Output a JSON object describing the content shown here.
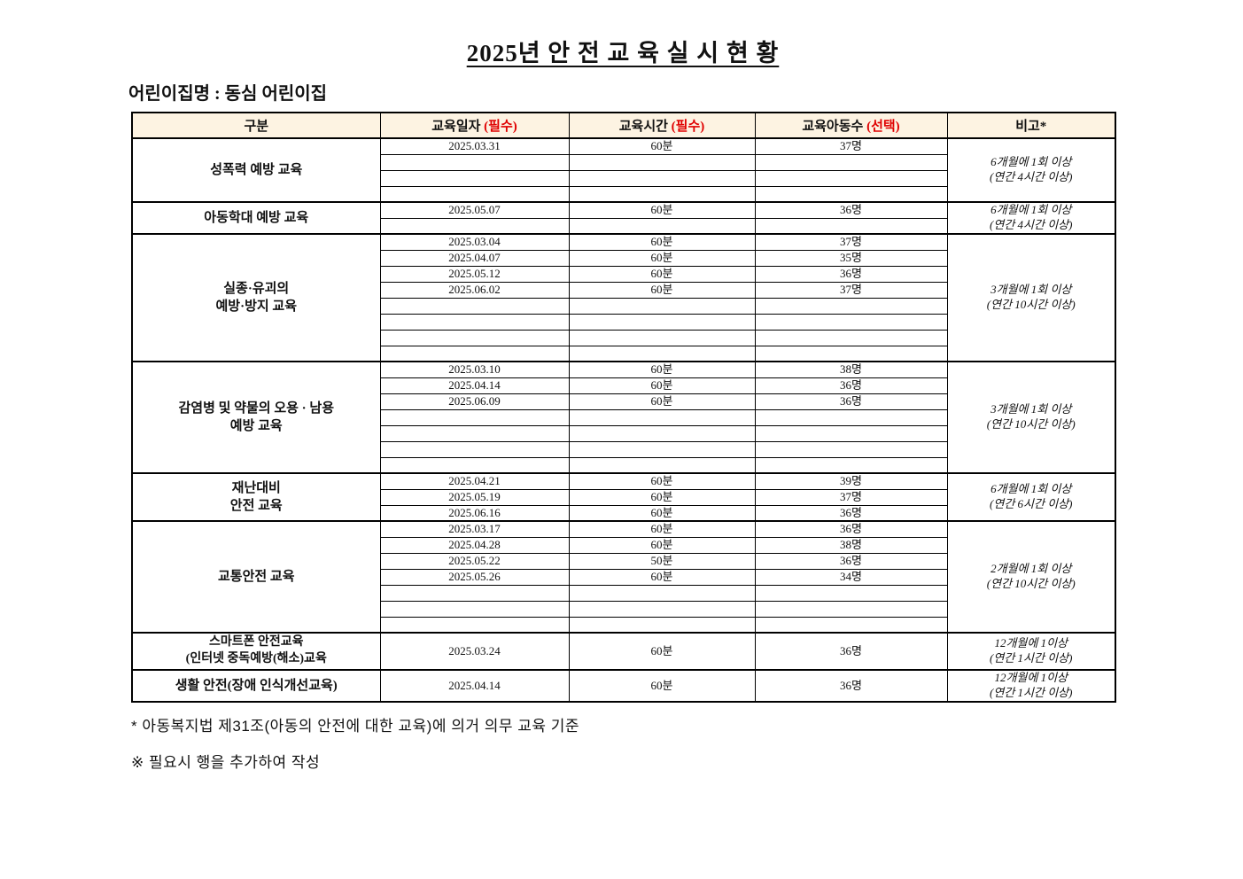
{
  "page": {
    "title": "2025년 안 전 교 육 실 시 현 황",
    "facility": "어린이집명 : 동심 어린이집"
  },
  "table": {
    "headers": {
      "category": "구분",
      "date": "교육일자",
      "date_req": "(필수)",
      "time": "교육시간",
      "time_req": "(필수)",
      "children": "교육아동수",
      "children_req": "(선택)",
      "remark": "비고*"
    },
    "blocks": [
      {
        "category_lines": [
          "성폭력 예방 교육"
        ],
        "rows": [
          {
            "date": "2025.03.31",
            "duration": "60분",
            "children": "37명"
          },
          {
            "date": "",
            "duration": "",
            "children": ""
          },
          {
            "date": "",
            "duration": "",
            "children": ""
          },
          {
            "date": "",
            "duration": "",
            "children": ""
          }
        ],
        "remark_lines": [
          "6개월에 1회 이상",
          "(연간 4시간 이상)"
        ]
      },
      {
        "category_lines": [
          "아동학대 예방 교육"
        ],
        "rows": [
          {
            "date": "2025.05.07",
            "duration": "60분",
            "children": "36명"
          },
          {
            "date": "",
            "duration": "",
            "children": ""
          }
        ],
        "remark_lines": [
          "6개월에 1회 이상",
          "(연간 4시간 이상)"
        ]
      },
      {
        "category_lines": [
          "실종·유괴의",
          "예방·방지 교육"
        ],
        "rows": [
          {
            "date": "2025.03.04",
            "duration": "60분",
            "children": "37명"
          },
          {
            "date": "2025.04.07",
            "duration": "60분",
            "children": "35명"
          },
          {
            "date": "2025.05.12",
            "duration": "60분",
            "children": "36명"
          },
          {
            "date": "2025.06.02",
            "duration": "60분",
            "children": "37명"
          },
          {
            "date": "",
            "duration": "",
            "children": ""
          },
          {
            "date": "",
            "duration": "",
            "children": ""
          },
          {
            "date": "",
            "duration": "",
            "children": ""
          },
          {
            "date": "",
            "duration": "",
            "children": ""
          }
        ],
        "remark_lines": [
          "3개월에 1회 이상",
          "(연간 10시간 이상)"
        ]
      },
      {
        "category_lines": [
          "감염병 및 약물의 오용 · 남용",
          "예방 교육"
        ],
        "rows": [
          {
            "date": "2025.03.10",
            "duration": "60분",
            "children": "38명"
          },
          {
            "date": "2025.04.14",
            "duration": "60분",
            "children": "36명"
          },
          {
            "date": "2025.06.09",
            "duration": "60분",
            "children": "36명"
          },
          {
            "date": "",
            "duration": "",
            "children": ""
          },
          {
            "date": "",
            "duration": "",
            "children": ""
          },
          {
            "date": "",
            "duration": "",
            "children": ""
          },
          {
            "date": "",
            "duration": "",
            "children": ""
          }
        ],
        "remark_lines": [
          "3개월에 1회 이상",
          "(연간 10시간 이상)"
        ]
      },
      {
        "category_lines": [
          "재난대비",
          "안전 교육"
        ],
        "rows": [
          {
            "date": "2025.04.21",
            "duration": "60분",
            "children": "39명"
          },
          {
            "date": "2025.05.19",
            "duration": "60분",
            "children": "37명"
          },
          {
            "date": "2025.06.16",
            "duration": "60분",
            "children": "36명"
          }
        ],
        "remark_lines": [
          "6개월에 1회 이상",
          "(연간 6시간 이상)"
        ]
      },
      {
        "category_lines": [
          "교통안전 교육"
        ],
        "rows": [
          {
            "date": "2025.03.17",
            "duration": "60분",
            "children": "36명"
          },
          {
            "date": "2025.04.28",
            "duration": "60분",
            "children": "38명"
          },
          {
            "date": "2025.05.22",
            "duration": "50분",
            "children": "36명"
          },
          {
            "date": "2025.05.26",
            "duration": "60분",
            "children": "34명"
          },
          {
            "date": "",
            "duration": "",
            "children": ""
          },
          {
            "date": "",
            "duration": "",
            "children": ""
          },
          {
            "date": "",
            "duration": "",
            "children": ""
          }
        ],
        "remark_lines": [
          "2개월에 1회 이상",
          "(연간 10시간 이상)"
        ]
      },
      {
        "category_lines": [
          "스마트폰 안전교육",
          "(인터넷 중독예방(해소)교육"
        ],
        "rows": [
          {
            "date": "2025.03.24",
            "duration": "60분",
            "children": "36명"
          }
        ],
        "remark_lines": [
          "12개월에 1이상",
          "(연간 1시간 이상)"
        ]
      },
      {
        "category_lines": [
          "생활 안전(장애 인식개선교육)"
        ],
        "rows": [
          {
            "date": "2025.04.14",
            "duration": "60분",
            "children": "36명"
          }
        ],
        "remark_lines": [
          "12개월에 1이상",
          "(연간 1시간 이상)"
        ]
      }
    ]
  },
  "footnotes": {
    "legal": "* 아동복지법 제31조(아동의 안전에 대한 교육)에 의거 의무 교육 기준",
    "note": "※ 필요시 행을 추가하여 작성"
  },
  "colors": {
    "header_bg": "#fdf3e2",
    "required_red": "#e00000"
  }
}
